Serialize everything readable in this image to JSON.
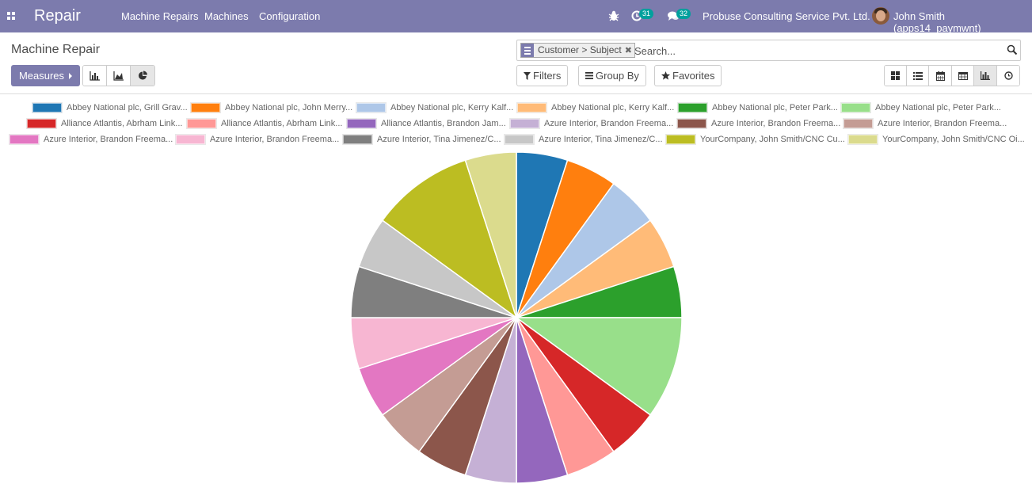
{
  "navbar": {
    "app_title": "Repair",
    "menu": [
      "Machine Repairs",
      "Machines",
      "Configuration"
    ],
    "activity_count": "31",
    "messages_count": "32",
    "company": "Probuse Consulting Service Pvt. Ltd.",
    "user": "John Smith (apps14_paymwnt)"
  },
  "control_panel": {
    "breadcrumb": "Machine Repair",
    "facet_label": "Customer > Subject",
    "search_placeholder": "Search...",
    "measures_label": "Measures",
    "filters_label": "Filters",
    "group_by_label": "Group By",
    "favorites_label": "Favorites"
  },
  "chart_data": {
    "type": "pie",
    "categories": [
      "Abbey National plc, Grill Grav...",
      "Abbey National plc, John Merry...",
      "Abbey National plc, Kerry Kalf...",
      "Abbey National plc, Kerry Kalf...",
      "Abbey National plc, Peter Park...",
      "Abbey National plc, Peter Park...",
      "Alliance Atlantis, Abrham Link...",
      "Alliance Atlantis, Abrham Link...",
      "Alliance Atlantis, Brandon Jam...",
      "Azure Interior, Brandon Freema...",
      "Azure Interior, Brandon Freema...",
      "Azure Interior, Brandon Freema...",
      "Azure Interior, Brandon Freema...",
      "Azure Interior, Brandon Freema...",
      "Azure Interior, Tina Jimenez/C...",
      "Azure Interior, Tina Jimenez/C...",
      "YourCompany, John Smith/CNC Cu...",
      "YourCompany, John Smith/CNC Oi..."
    ],
    "values": [
      1,
      1,
      1,
      1,
      1,
      2,
      1,
      1,
      1,
      1,
      1,
      1,
      1,
      1,
      1,
      1,
      2,
      1
    ],
    "colors": [
      "#1f77b4",
      "#ff7f0e",
      "#aec7e8",
      "#ffbb78",
      "#2ca02c",
      "#98df8a",
      "#d62728",
      "#ff9896",
      "#9467bd",
      "#c5b0d5",
      "#8c564b",
      "#c49c94",
      "#e377c2",
      "#f7b6d2",
      "#7f7f7f",
      "#c7c7c7",
      "#bcbd22",
      "#dbdb8d"
    ],
    "legend_position": "top"
  }
}
